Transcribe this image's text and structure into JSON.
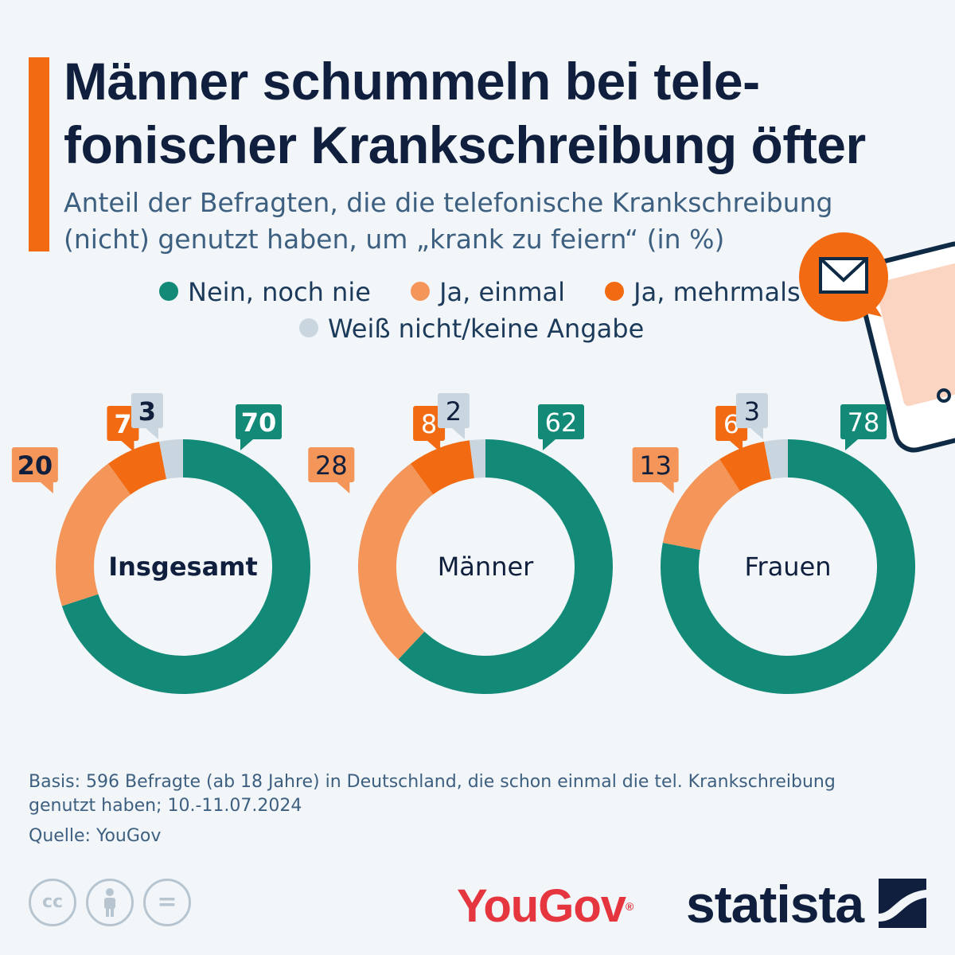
{
  "title_lines": [
    "Männer schummeln bei tele-",
    "fonischer Krankschreibung öfter"
  ],
  "subtitle_lines": [
    "Anteil der Befragten, die die telefonische Krankschreibung",
    "(nicht) genutzt haben, um „krank zu feiern“ (in %)"
  ],
  "legend": [
    {
      "label": "Nein, noch nie",
      "color": "#138a78"
    },
    {
      "label": "Ja, einmal",
      "color": "#f4955a"
    },
    {
      "label": "Ja, mehrmals",
      "color": "#f26a12"
    },
    {
      "label": "Weiß nicht/keine Angabe",
      "color": "#c9d6df"
    }
  ],
  "chart_data": {
    "type": "pie",
    "variant": "donut",
    "categories": [
      "Nein, noch nie",
      "Ja, einmal",
      "Ja, mehrmals",
      "Weiß nicht/keine Angabe"
    ],
    "colors": [
      "#138a78",
      "#f4955a",
      "#f26a12",
      "#c9d6df"
    ],
    "unit": "%",
    "charts": [
      {
        "name": "Insgesamt",
        "values": [
          70,
          20,
          7,
          3
        ],
        "highlight": true
      },
      {
        "name": "Männer",
        "values": [
          62,
          28,
          8,
          2
        ],
        "highlight": false
      },
      {
        "name": "Frauen",
        "values": [
          78,
          13,
          6,
          3
        ],
        "highlight": false
      }
    ]
  },
  "footer": {
    "basis_lines": [
      "Basis: 596 Befragte (ab 18 Jahre) in Deutschland, die schon einmal die tel. Krankschreibung",
      "genutzt haben; 10.-11.07.2024"
    ],
    "source": "Quelle: YouGov"
  },
  "license_icons": [
    "creative-commons-icon",
    "attribution-icon",
    "no-derivatives-icon"
  ],
  "license_text": {
    "cc": "cc",
    "nd": "="
  },
  "logos": {
    "yougov": "YouGov",
    "statista": "statista"
  },
  "colors": {
    "accent": "#f26a12",
    "title": "#0f1f3d"
  }
}
